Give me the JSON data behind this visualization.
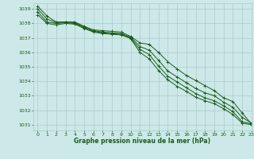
{
  "background_color": "#cce8e8",
  "grid_color": "#aacccc",
  "line_color": "#1a5c1a",
  "text_color": "#1a5c1a",
  "xlabel": "Graphe pression niveau de la mer (hPa)",
  "xlim": [
    -0.5,
    23
  ],
  "ylim": [
    1030.6,
    1039.4
  ],
  "yticks": [
    1031,
    1032,
    1033,
    1034,
    1035,
    1036,
    1037,
    1038,
    1039
  ],
  "xticks": [
    0,
    1,
    2,
    3,
    4,
    5,
    6,
    7,
    8,
    9,
    10,
    11,
    12,
    13,
    14,
    15,
    16,
    17,
    18,
    19,
    20,
    21,
    22,
    23
  ],
  "series": [
    [
      1039.2,
      1038.5,
      1038.1,
      1038.1,
      1038.1,
      1037.8,
      1037.55,
      1037.5,
      1037.45,
      1037.4,
      1037.1,
      1036.65,
      1036.55,
      1036.0,
      1035.35,
      1034.85,
      1034.4,
      1034.05,
      1033.7,
      1033.35,
      1032.85,
      1032.6,
      1031.8,
      1031.05
    ],
    [
      1039.0,
      1038.3,
      1038.05,
      1038.1,
      1038.05,
      1037.75,
      1037.5,
      1037.4,
      1037.35,
      1037.3,
      1037.05,
      1036.4,
      1036.15,
      1035.45,
      1034.7,
      1034.3,
      1033.9,
      1033.5,
      1033.2,
      1033.0,
      1032.55,
      1032.2,
      1031.5,
      1031.1
    ],
    [
      1038.8,
      1038.1,
      1038.0,
      1038.05,
      1038.0,
      1037.7,
      1037.45,
      1037.35,
      1037.3,
      1037.25,
      1037.0,
      1036.2,
      1035.85,
      1035.05,
      1034.35,
      1033.95,
      1033.55,
      1033.15,
      1032.85,
      1032.65,
      1032.3,
      1031.9,
      1031.2,
      1031.05
    ],
    [
      1038.6,
      1038.0,
      1037.9,
      1038.0,
      1037.95,
      1037.65,
      1037.4,
      1037.3,
      1037.25,
      1037.2,
      1036.95,
      1036.0,
      1035.55,
      1034.75,
      1034.1,
      1033.65,
      1033.3,
      1032.9,
      1032.65,
      1032.45,
      1032.1,
      1031.7,
      1031.1,
      1031.0
    ]
  ]
}
